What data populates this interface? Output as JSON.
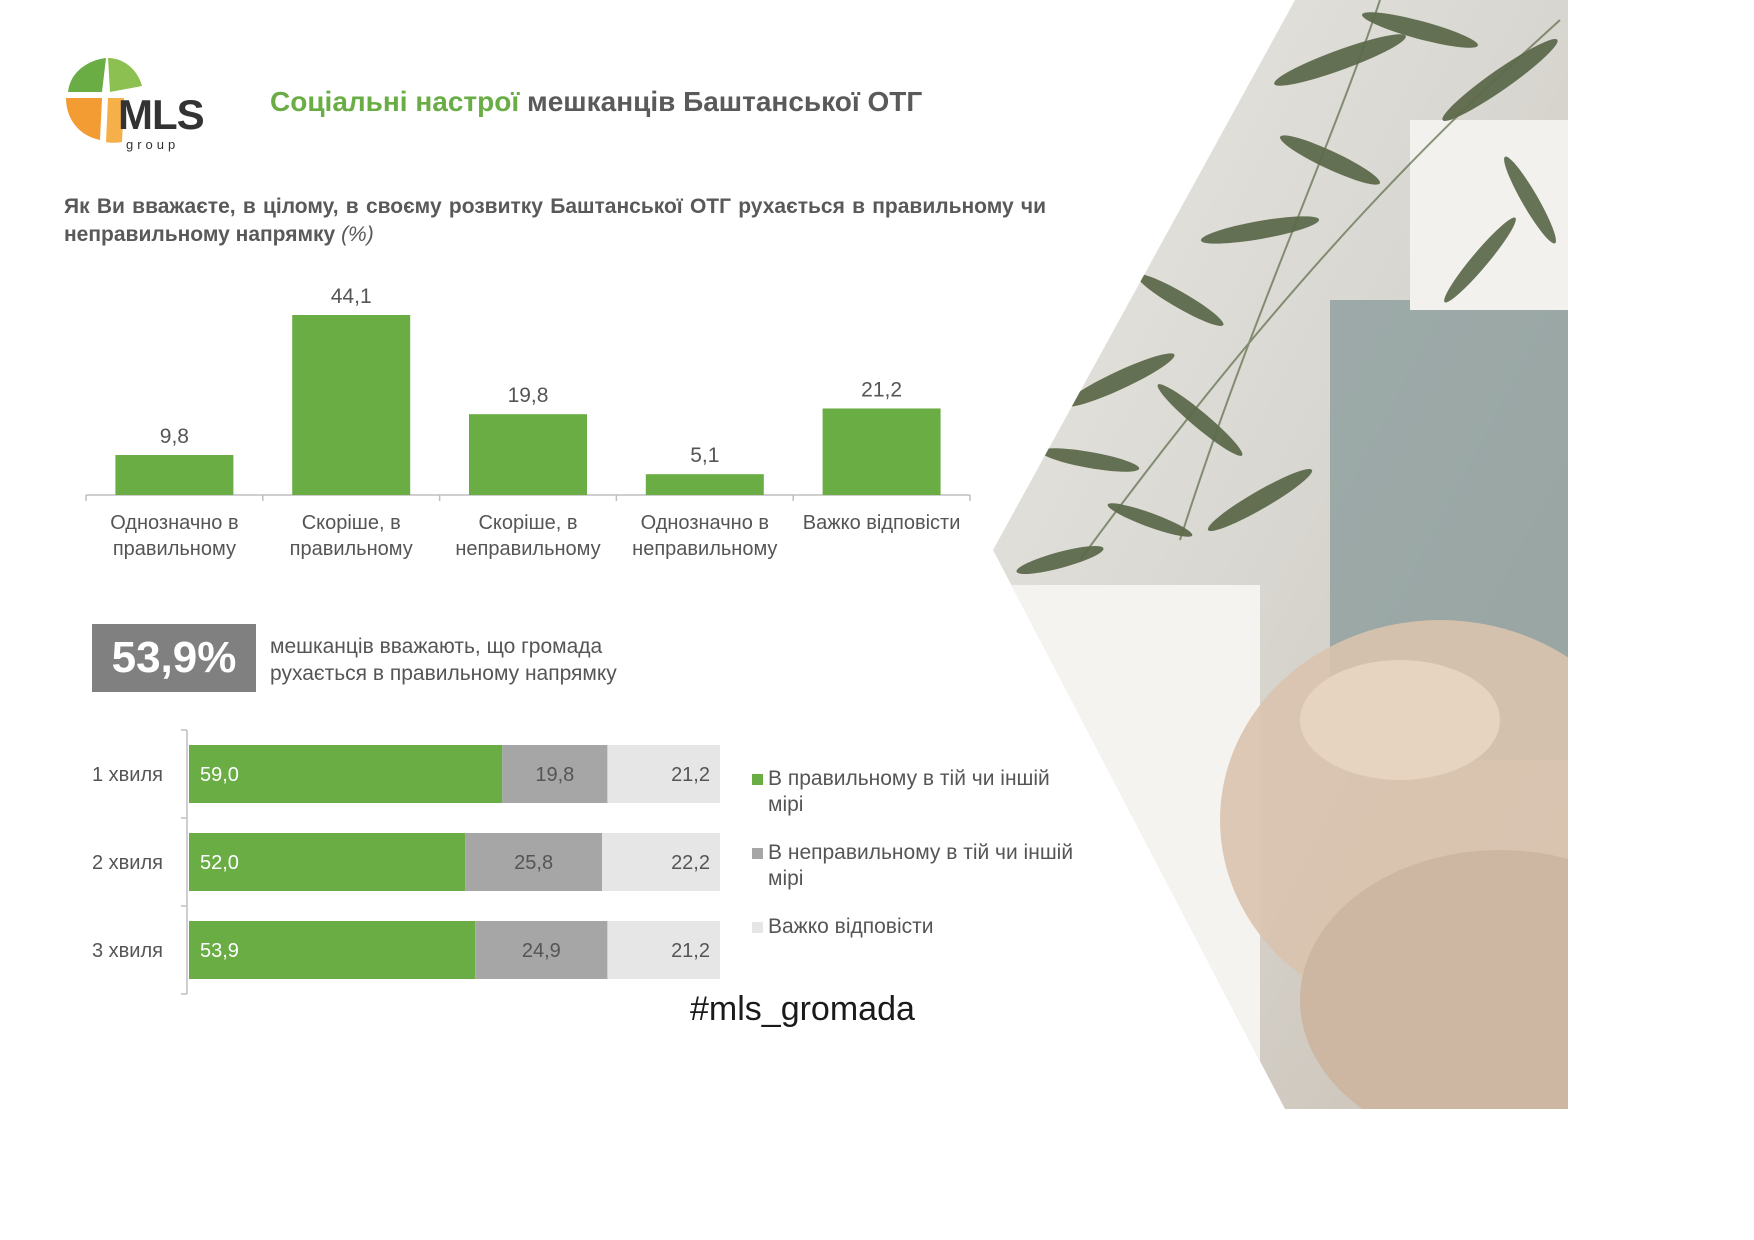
{
  "logo": {
    "name": "MLS",
    "sub": "group"
  },
  "title": {
    "highlight": "Соціальні настрої",
    "rest": "мешканців Баштанської ОТГ"
  },
  "question": {
    "text": "Як Ви вважаєте, в цілому, в своєму розвитку Баштанської ОТГ рухається в правильному чи неправильному напрямку",
    "unit": "(%)"
  },
  "summary": {
    "value": "53,9%",
    "text": "мешканців вважають, що громада рухається в правильному напрямку"
  },
  "hashtag": "#mls_gromada",
  "colors": {
    "green": "#6aad45",
    "gray": "#a6a6a6",
    "light": "#e6e6e6",
    "box": "#808080"
  },
  "chart_data": [
    {
      "type": "bar",
      "categories": [
        [
          "Однозначно в",
          "правильному"
        ],
        [
          "Скоріше, в",
          "правильному"
        ],
        [
          "Скоріше, в",
          "неправильному"
        ],
        [
          "Однозначно в",
          "неправильному"
        ],
        [
          "Важко відповісти"
        ]
      ],
      "values": [
        9.8,
        44.1,
        19.8,
        5.1,
        21.2
      ],
      "labels": [
        "9,8",
        "44,1",
        "19,8",
        "5,1",
        "21,2"
      ],
      "ylim": [
        0,
        44.1
      ],
      "grid": false,
      "color": "#6aad45"
    },
    {
      "type": "bar",
      "orientation": "horizontal",
      "stacked": true,
      "categories": [
        "1 хвиля",
        "2 хвиля",
        "3 хвиля"
      ],
      "series": [
        {
          "name": "В правильному в тій чи іншій мірі",
          "values": [
            59.0,
            52.0,
            53.9
          ],
          "labels": [
            "59,0",
            "52,0",
            "53,9"
          ],
          "color": "#6aad45"
        },
        {
          "name": "В неправильному в тій чи іншій мірі",
          "values": [
            19.8,
            25.8,
            24.9
          ],
          "labels": [
            "19,8",
            "25,8",
            "24,9"
          ],
          "color": "#a6a6a6"
        },
        {
          "name": "Важко відповісти",
          "values": [
            21.2,
            22.2,
            21.2
          ],
          "labels": [
            "21,2",
            "22,2",
            "21,2"
          ],
          "color": "#e6e6e6"
        }
      ],
      "xlim": [
        0,
        100
      ],
      "legend": "right"
    }
  ]
}
